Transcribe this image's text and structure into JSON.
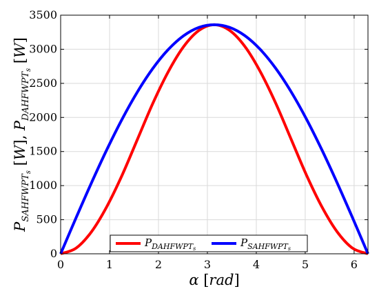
{
  "chart_data": {
    "type": "line",
    "xlabel": {
      "symbol": "α",
      "unit": "rad"
    },
    "ylabel": {
      "sym1": "P",
      "sub1": "SAHFWPT",
      "subsub1": "s",
      "unit1": "W",
      "sym2": "P",
      "sub2": "DAHFWPT",
      "subsub2": "s",
      "unit2": "W"
    },
    "xlim": [
      0,
      6.2832
    ],
    "ylim": [
      0,
      3500
    ],
    "xticks": [
      0,
      1,
      2,
      3,
      4,
      5,
      6
    ],
    "yticks": [
      0,
      500,
      1000,
      1500,
      2000,
      2500,
      3000,
      3500
    ],
    "grid": true,
    "legend_position": "bottom-center",
    "series": [
      {
        "name": "P_DAHFWPTs",
        "label": {
          "sym": "P",
          "sub": "DAHFWPT",
          "subsub": "s"
        },
        "color": "#ff0000",
        "x": [
          0,
          0.3142,
          0.6283,
          0.9425,
          1.2566,
          1.5708,
          1.885,
          2.1991,
          2.5133,
          2.8274,
          3.1416,
          3.4558,
          3.7699,
          4.0841,
          4.3982,
          4.7124,
          5.0265,
          5.3407,
          5.6549,
          5.969,
          6.2832
        ],
        "y": [
          0,
          82,
          321,
          690,
          1153,
          1680,
          2207,
          2669,
          3038,
          3276,
          3360,
          3276,
          3038,
          2669,
          2207,
          1680,
          1153,
          690,
          321,
          82,
          0
        ]
      },
      {
        "name": "P_SAHFWPTs",
        "label": {
          "sym": "P",
          "sub": "SAHFWPT",
          "subsub": "s"
        },
        "color": "#0000ff",
        "x": [
          0,
          0.3142,
          0.6283,
          0.9425,
          1.2566,
          1.5708,
          1.885,
          2.1991,
          2.5133,
          2.8274,
          3.1416,
          3.4558,
          3.7699,
          4.0841,
          4.3982,
          4.7124,
          5.0265,
          5.3407,
          5.6549,
          5.969,
          6.2832
        ],
        "y": [
          0,
          526,
          1038,
          1525,
          1975,
          2376,
          2719,
          2995,
          3198,
          3321,
          3360,
          3321,
          3198,
          2995,
          2719,
          2376,
          1975,
          1525,
          1038,
          526,
          0
        ]
      }
    ]
  }
}
